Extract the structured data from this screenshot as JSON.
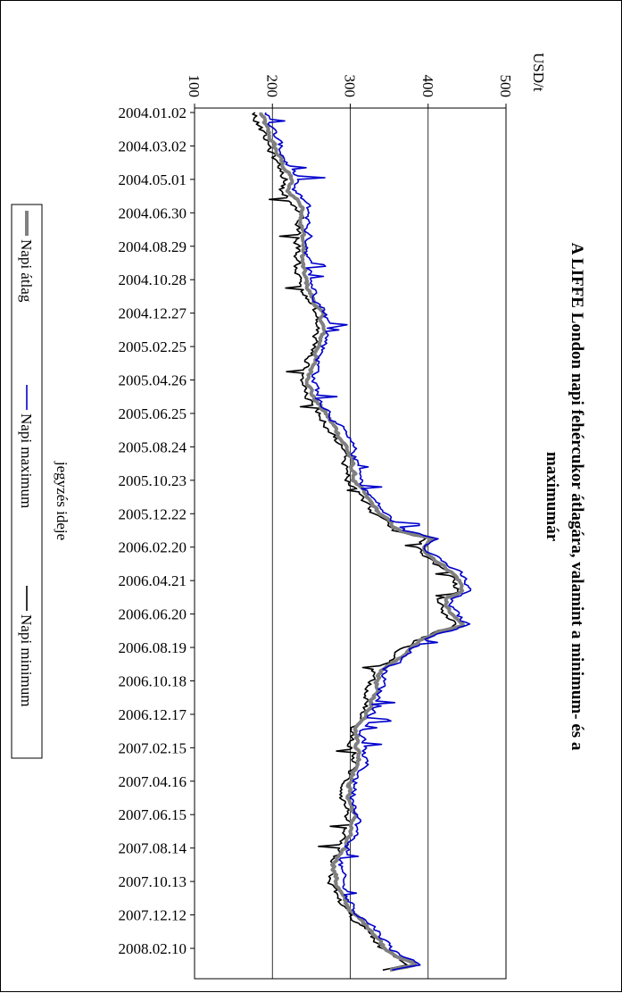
{
  "chart_data": {
    "type": "line",
    "orientation": "rotated-90-clockwise",
    "title": "A LIFFE London napi fehércukor átlagára, valamint a minimum- és a maximumár",
    "title_lines": [
      "A LIFFE London napi fehércukor átlagára, valamint a minimum- és a",
      "maximumár"
    ],
    "xlabel": "jegyzés ideje",
    "ylabel": "USD/t",
    "ylim": [
      100,
      500
    ],
    "yticks": [
      100,
      200,
      300,
      400,
      500
    ],
    "gridlines_y": [
      200,
      300,
      400
    ],
    "grid": true,
    "legend_position": "bottom",
    "x_tick_labels": [
      "2004.01.02",
      "2004.03.02",
      "2004.05.01",
      "2004.06.30",
      "2004.08.29",
      "2004.10.28",
      "2004.12.27",
      "2005.02.25",
      "2005.04.26",
      "2005.06.25",
      "2005.08.24",
      "2005.10.23",
      "2005.12.22",
      "2006.02.20",
      "2006.04.21",
      "2006.06.20",
      "2006.08.19",
      "2006.10.18",
      "2006.12.17",
      "2007.02.15",
      "2007.04.16",
      "2007.06.15",
      "2007.08.14",
      "2007.10.13",
      "2007.12.12",
      "2008.02.10"
    ],
    "x_range": [
      "2004.01.02",
      "2008.03.20"
    ],
    "base_points": [
      [
        "2004.01.02",
        185
      ],
      [
        "2004.02.01",
        192
      ],
      [
        "2004.03.02",
        202
      ],
      [
        "2004.04.01",
        212
      ],
      [
        "2004.05.01",
        225
      ],
      [
        "2004.05.20",
        218
      ],
      [
        "2004.06.10",
        235
      ],
      [
        "2004.06.30",
        240
      ],
      [
        "2004.07.20",
        238
      ],
      [
        "2004.08.29",
        240
      ],
      [
        "2004.09.28",
        238
      ],
      [
        "2004.10.28",
        242
      ],
      [
        "2004.11.27",
        250
      ],
      [
        "2004.12.27",
        262
      ],
      [
        "2005.01.26",
        265
      ],
      [
        "2005.02.25",
        260
      ],
      [
        "2005.03.27",
        252
      ],
      [
        "2005.04.26",
        247
      ],
      [
        "2005.05.26",
        252
      ],
      [
        "2005.06.25",
        268
      ],
      [
        "2005.07.25",
        282
      ],
      [
        "2005.08.24",
        295
      ],
      [
        "2005.09.23",
        302
      ],
      [
        "2005.10.23",
        305
      ],
      [
        "2005.11.22",
        320
      ],
      [
        "2005.12.22",
        338
      ],
      [
        "2006.01.21",
        362
      ],
      [
        "2006.02.05",
        405
      ],
      [
        "2006.02.20",
        392
      ],
      [
        "2006.03.15",
        410
      ],
      [
        "2006.04.05",
        430
      ],
      [
        "2006.04.21",
        440
      ],
      [
        "2006.05.10",
        445
      ],
      [
        "2006.05.25",
        420
      ],
      [
        "2006.06.20",
        428
      ],
      [
        "2006.07.10",
        445
      ],
      [
        "2006.07.25",
        410
      ],
      [
        "2006.08.19",
        375
      ],
      [
        "2006.09.10",
        360
      ],
      [
        "2006.09.25",
        342
      ],
      [
        "2006.10.18",
        335
      ],
      [
        "2006.11.17",
        330
      ],
      [
        "2006.12.17",
        322
      ],
      [
        "2007.01.16",
        308
      ],
      [
        "2007.02.15",
        310
      ],
      [
        "2007.03.17",
        312
      ],
      [
        "2007.04.16",
        300
      ],
      [
        "2007.05.16",
        298
      ],
      [
        "2007.06.15",
        305
      ],
      [
        "2007.07.15",
        300
      ],
      [
        "2007.08.14",
        290
      ],
      [
        "2007.09.13",
        280
      ],
      [
        "2007.10.13",
        282
      ],
      [
        "2007.11.12",
        290
      ],
      [
        "2007.12.12",
        305
      ],
      [
        "2008.01.11",
        330
      ],
      [
        "2008.02.10",
        345
      ],
      [
        "2008.03.01",
        370
      ],
      [
        "2008.03.10",
        385
      ],
      [
        "2008.03.20",
        350
      ]
    ],
    "series": [
      {
        "name": "Napi átlag",
        "color": "#808080",
        "offset": 0,
        "noise": 5
      },
      {
        "name": "Napi maximum",
        "color": "#0000cc",
        "offset": 7,
        "noise": 8
      },
      {
        "name": "Napi minimum",
        "color": "#000000",
        "offset": -7,
        "noise": 8
      }
    ]
  }
}
